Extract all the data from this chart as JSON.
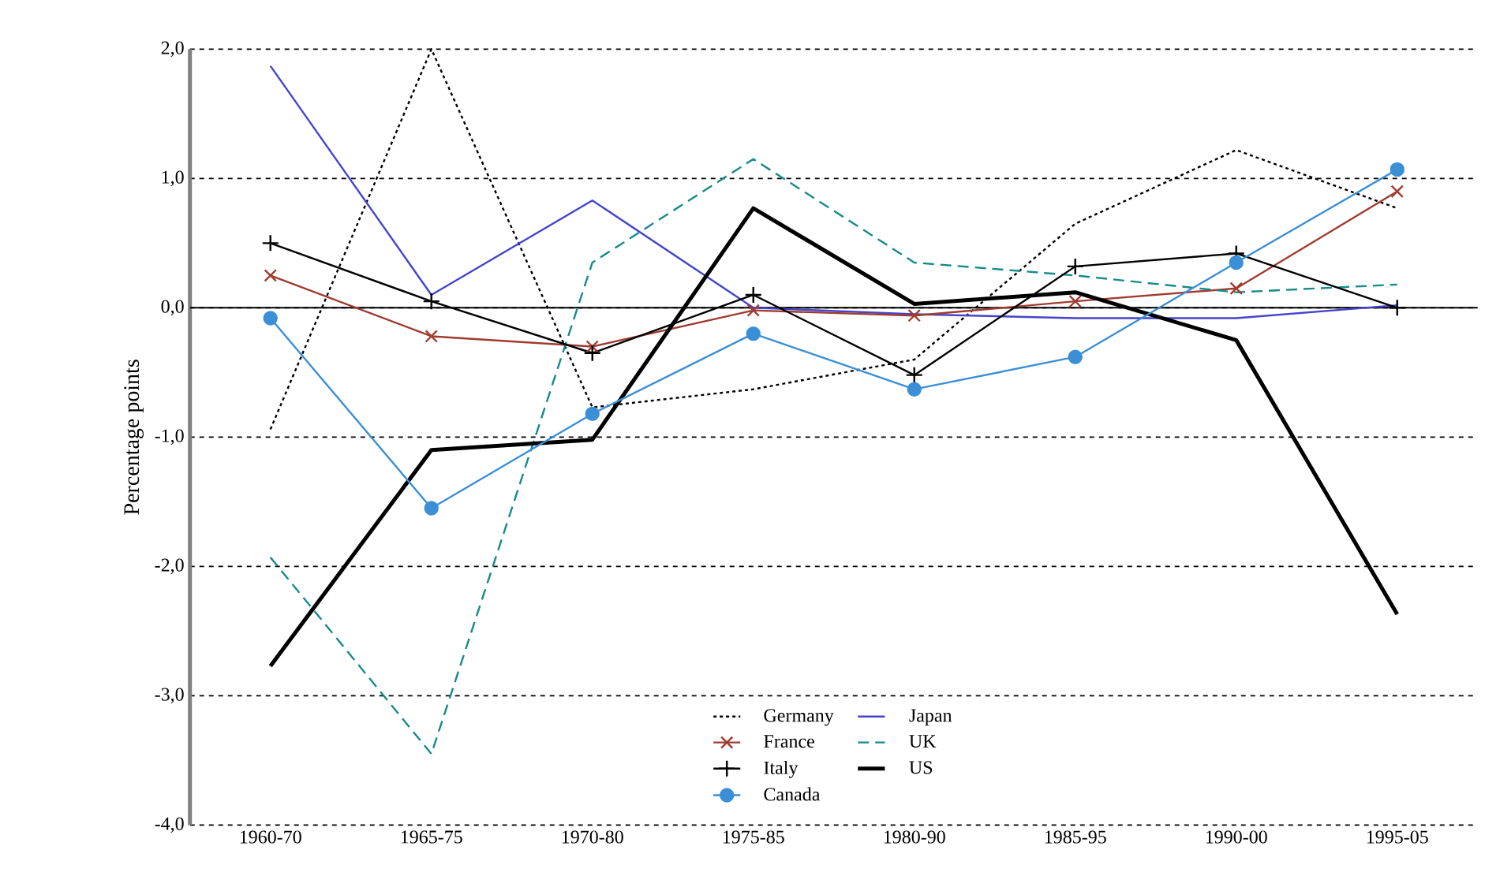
{
  "chart_data": {
    "type": "line",
    "ylabel": "Percentage points",
    "categories": [
      "1960-70",
      "1965-75",
      "1970-80",
      "1975-85",
      "1980-90",
      "1985-95",
      "1990-00",
      "1995-05"
    ],
    "ylim": [
      -4,
      2
    ],
    "yticks": [
      {
        "value": -4,
        "label": "-4,0"
      },
      {
        "value": -3,
        "label": "-3,0"
      },
      {
        "value": -2,
        "label": "-2,0"
      },
      {
        "value": -1,
        "label": "-1,0"
      },
      {
        "value": 0,
        "label": "0,0"
      },
      {
        "value": 1,
        "label": "1,0"
      },
      {
        "value": 2,
        "label": "2,0"
      }
    ],
    "grid": "y",
    "legend": "bottom",
    "series": [
      {
        "name": "Germany",
        "color": "#000000",
        "line_style": "dotted",
        "marker": "none",
        "values": [
          -0.94,
          2.0,
          -0.77,
          -0.63,
          -0.4,
          0.65,
          1.22,
          0.77
        ]
      },
      {
        "name": "Japan",
        "color": "#4444cc",
        "line_style": "solid",
        "marker": "none",
        "values": [
          1.87,
          0.1,
          0.83,
          0.0,
          -0.05,
          -0.08,
          -0.08,
          0.02
        ]
      },
      {
        "name": "France",
        "color": "#a03c30",
        "line_style": "solid",
        "marker": "cross",
        "values": [
          0.25,
          -0.22,
          -0.3,
          -0.02,
          -0.06,
          0.05,
          0.15,
          0.9
        ]
      },
      {
        "name": "UK",
        "color": "#178a8a",
        "line_style": "dashed",
        "marker": "none",
        "values": [
          -1.93,
          -3.45,
          0.35,
          1.15,
          0.35,
          0.25,
          0.12,
          0.18
        ]
      },
      {
        "name": "Italy",
        "color": "#000000",
        "line_style": "solid",
        "marker": "plus",
        "values": [
          0.5,
          0.05,
          -0.35,
          0.1,
          -0.52,
          0.32,
          0.42,
          0.0
        ]
      },
      {
        "name": "US",
        "color": "#000000",
        "line_style": "solid",
        "marker": "none",
        "values": [
          -2.77,
          -1.1,
          -1.02,
          0.77,
          0.03,
          0.12,
          -0.25,
          -2.37
        ]
      },
      {
        "name": "Canada",
        "color": "#3a8fd6",
        "line_style": "solid",
        "marker": "circle",
        "values": [
          -0.08,
          -1.55,
          -0.82,
          -0.2,
          -0.63,
          -0.38,
          0.35,
          1.07
        ]
      }
    ]
  }
}
